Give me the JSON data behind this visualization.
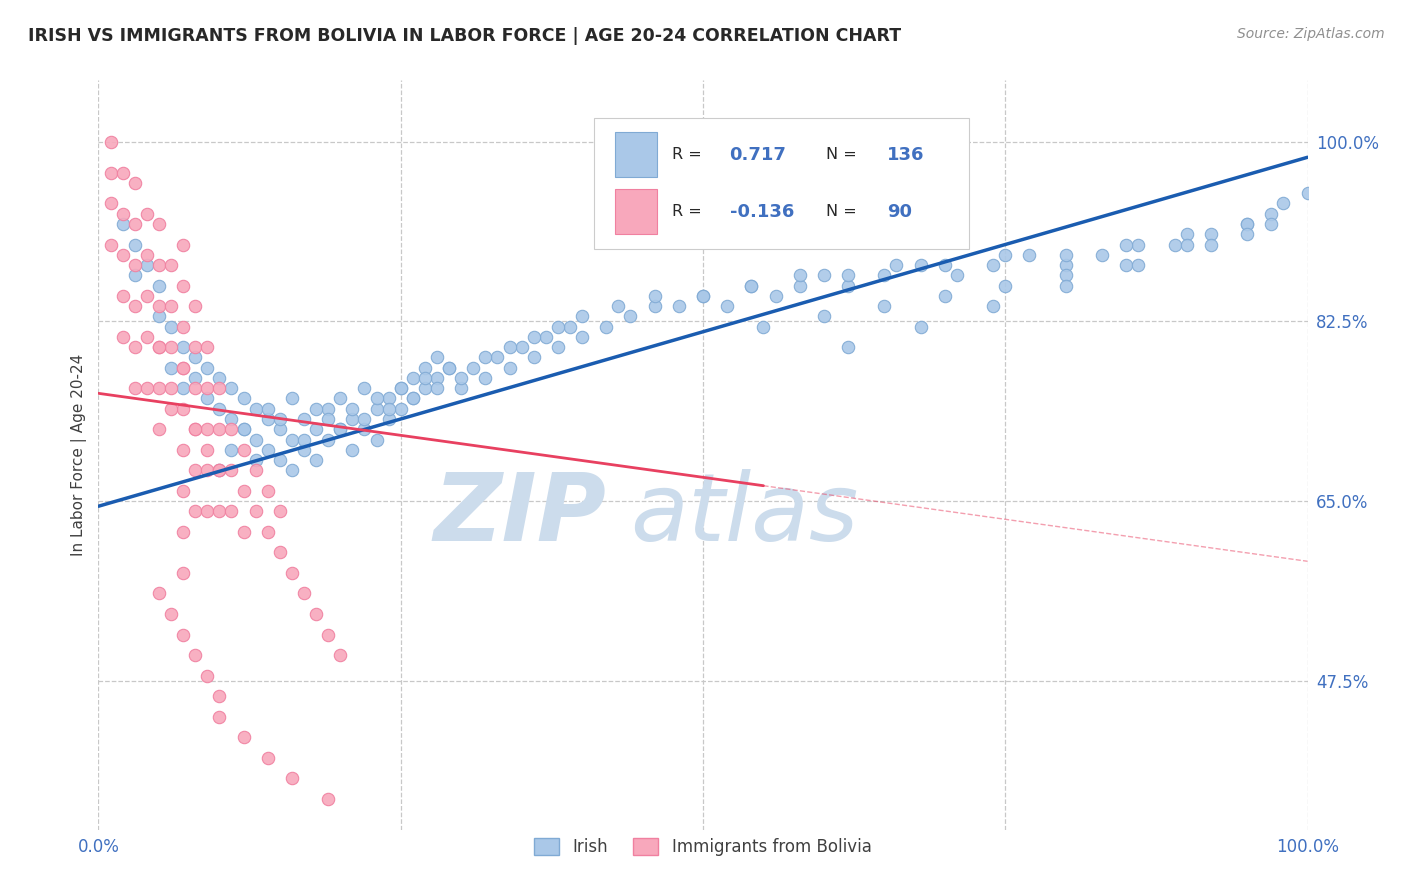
{
  "title": "IRISH VS IMMIGRANTS FROM BOLIVIA IN LABOR FORCE | AGE 20-24 CORRELATION CHART",
  "source_text": "Source: ZipAtlas.com",
  "ylabel": "In Labor Force | Age 20-24",
  "xlim": [
    0.0,
    1.0
  ],
  "ylim": [
    0.33,
    1.06
  ],
  "irish_R": 0.717,
  "irish_N": 136,
  "bolivia_R": -0.136,
  "bolivia_N": 90,
  "legend_labels": [
    "Irish",
    "Immigrants from Bolivia"
  ],
  "irish_color": "#aac8e8",
  "irish_edge_color": "#80aad4",
  "bolivia_color": "#f8a8bc",
  "bolivia_edge_color": "#f080a0",
  "trend_irish_color": "#1a5cb0",
  "trend_bolivia_color": "#e84060",
  "grid_color": "#c8c8c8",
  "watermark_color": "#ccdcec",
  "title_color": "#282828",
  "axis_label_color": "#404040",
  "tick_label_color": "#4070c0",
  "legend_r_color": "#4070c0",
  "background_color": "#ffffff",
  "y_ticks": [
    0.475,
    0.65,
    0.825,
    1.0
  ],
  "y_tick_labels": [
    "47.5%",
    "65.0%",
    "82.5%",
    "100.0%"
  ],
  "irish_scatter_x": [
    0.02,
    0.03,
    0.03,
    0.04,
    0.05,
    0.05,
    0.06,
    0.06,
    0.07,
    0.07,
    0.08,
    0.08,
    0.09,
    0.09,
    0.1,
    0.1,
    0.11,
    0.11,
    0.12,
    0.12,
    0.13,
    0.13,
    0.14,
    0.14,
    0.15,
    0.15,
    0.16,
    0.16,
    0.17,
    0.17,
    0.18,
    0.18,
    0.19,
    0.19,
    0.2,
    0.2,
    0.21,
    0.21,
    0.22,
    0.22,
    0.23,
    0.23,
    0.24,
    0.24,
    0.25,
    0.25,
    0.26,
    0.26,
    0.27,
    0.27,
    0.28,
    0.28,
    0.29,
    0.3,
    0.31,
    0.32,
    0.33,
    0.34,
    0.35,
    0.36,
    0.37,
    0.38,
    0.39,
    0.4,
    0.42,
    0.44,
    0.46,
    0.48,
    0.5,
    0.52,
    0.54,
    0.56,
    0.58,
    0.6,
    0.62,
    0.65,
    0.68,
    0.71,
    0.74,
    0.77,
    0.8,
    0.83,
    0.86,
    0.89,
    0.92,
    0.95,
    0.97,
    1.0,
    0.1,
    0.11,
    0.12,
    0.13,
    0.14,
    0.15,
    0.16,
    0.17,
    0.18,
    0.19,
    0.2,
    0.21,
    0.22,
    0.23,
    0.24,
    0.25,
    0.26,
    0.27,
    0.28,
    0.29,
    0.3,
    0.32,
    0.34,
    0.36,
    0.38,
    0.4,
    0.43,
    0.46,
    0.5,
    0.54,
    0.58,
    0.62,
    0.66,
    0.7,
    0.75,
    0.8,
    0.85,
    0.9,
    0.95,
    0.98,
    0.55,
    0.6,
    0.65,
    0.7,
    0.75,
    0.8,
    0.85,
    0.9,
    0.95,
    0.97,
    0.62,
    0.68,
    0.74,
    0.8,
    0.86,
    0.92
  ],
  "irish_scatter_y": [
    0.92,
    0.9,
    0.87,
    0.88,
    0.86,
    0.83,
    0.82,
    0.78,
    0.8,
    0.76,
    0.79,
    0.77,
    0.78,
    0.75,
    0.77,
    0.74,
    0.76,
    0.73,
    0.75,
    0.72,
    0.74,
    0.71,
    0.73,
    0.7,
    0.72,
    0.69,
    0.71,
    0.68,
    0.73,
    0.7,
    0.72,
    0.69,
    0.71,
    0.74,
    0.72,
    0.75,
    0.73,
    0.7,
    0.72,
    0.76,
    0.74,
    0.71,
    0.73,
    0.75,
    0.74,
    0.76,
    0.75,
    0.77,
    0.76,
    0.78,
    0.77,
    0.79,
    0.78,
    0.76,
    0.78,
    0.77,
    0.79,
    0.78,
    0.8,
    0.79,
    0.81,
    0.8,
    0.82,
    0.81,
    0.82,
    0.83,
    0.84,
    0.84,
    0.85,
    0.84,
    0.86,
    0.85,
    0.86,
    0.87,
    0.86,
    0.87,
    0.88,
    0.87,
    0.88,
    0.89,
    0.88,
    0.89,
    0.9,
    0.9,
    0.91,
    0.92,
    0.93,
    0.95,
    0.68,
    0.7,
    0.72,
    0.69,
    0.74,
    0.73,
    0.75,
    0.71,
    0.74,
    0.73,
    0.72,
    0.74,
    0.73,
    0.75,
    0.74,
    0.76,
    0.75,
    0.77,
    0.76,
    0.78,
    0.77,
    0.79,
    0.8,
    0.81,
    0.82,
    0.83,
    0.84,
    0.85,
    0.85,
    0.86,
    0.87,
    0.87,
    0.88,
    0.88,
    0.89,
    0.89,
    0.9,
    0.91,
    0.92,
    0.94,
    0.82,
    0.83,
    0.84,
    0.85,
    0.86,
    0.87,
    0.88,
    0.9,
    0.91,
    0.92,
    0.8,
    0.82,
    0.84,
    0.86,
    0.88,
    0.9
  ],
  "bolivia_scatter_x": [
    0.01,
    0.01,
    0.01,
    0.01,
    0.02,
    0.02,
    0.02,
    0.02,
    0.02,
    0.03,
    0.03,
    0.03,
    0.03,
    0.03,
    0.03,
    0.04,
    0.04,
    0.04,
    0.04,
    0.05,
    0.05,
    0.05,
    0.05,
    0.05,
    0.05,
    0.06,
    0.06,
    0.06,
    0.06,
    0.07,
    0.07,
    0.07,
    0.07,
    0.07,
    0.07,
    0.07,
    0.07,
    0.07,
    0.08,
    0.08,
    0.08,
    0.08,
    0.08,
    0.08,
    0.09,
    0.09,
    0.09,
    0.09,
    0.09,
    0.1,
    0.1,
    0.1,
    0.1,
    0.11,
    0.11,
    0.11,
    0.12,
    0.12,
    0.12,
    0.13,
    0.13,
    0.14,
    0.14,
    0.15,
    0.15,
    0.16,
    0.17,
    0.18,
    0.19,
    0.2,
    0.04,
    0.05,
    0.06,
    0.07,
    0.08,
    0.09,
    0.1,
    0.05,
    0.06,
    0.07,
    0.08,
    0.09,
    0.1,
    0.1,
    0.12,
    0.14,
    0.16,
    0.19
  ],
  "bolivia_scatter_y": [
    1.0,
    0.97,
    0.94,
    0.9,
    0.97,
    0.93,
    0.89,
    0.85,
    0.81,
    0.96,
    0.92,
    0.88,
    0.84,
    0.8,
    0.76,
    0.93,
    0.89,
    0.85,
    0.81,
    0.92,
    0.88,
    0.84,
    0.8,
    0.76,
    0.72,
    0.88,
    0.84,
    0.8,
    0.76,
    0.9,
    0.86,
    0.82,
    0.78,
    0.74,
    0.7,
    0.66,
    0.62,
    0.58,
    0.84,
    0.8,
    0.76,
    0.72,
    0.68,
    0.64,
    0.8,
    0.76,
    0.72,
    0.68,
    0.64,
    0.76,
    0.72,
    0.68,
    0.64,
    0.72,
    0.68,
    0.64,
    0.7,
    0.66,
    0.62,
    0.68,
    0.64,
    0.66,
    0.62,
    0.64,
    0.6,
    0.58,
    0.56,
    0.54,
    0.52,
    0.5,
    0.76,
    0.8,
    0.74,
    0.78,
    0.72,
    0.7,
    0.68,
    0.56,
    0.54,
    0.52,
    0.5,
    0.48,
    0.46,
    0.44,
    0.42,
    0.4,
    0.38,
    0.36
  ],
  "trend_irish_x0": 0.0,
  "trend_irish_x1": 1.0,
  "trend_irish_y0": 0.645,
  "trend_irish_y1": 0.985,
  "trend_bolivia_x0": 0.0,
  "trend_bolivia_x1": 0.55,
  "trend_bolivia_y0": 0.755,
  "trend_bolivia_y1": 0.665
}
